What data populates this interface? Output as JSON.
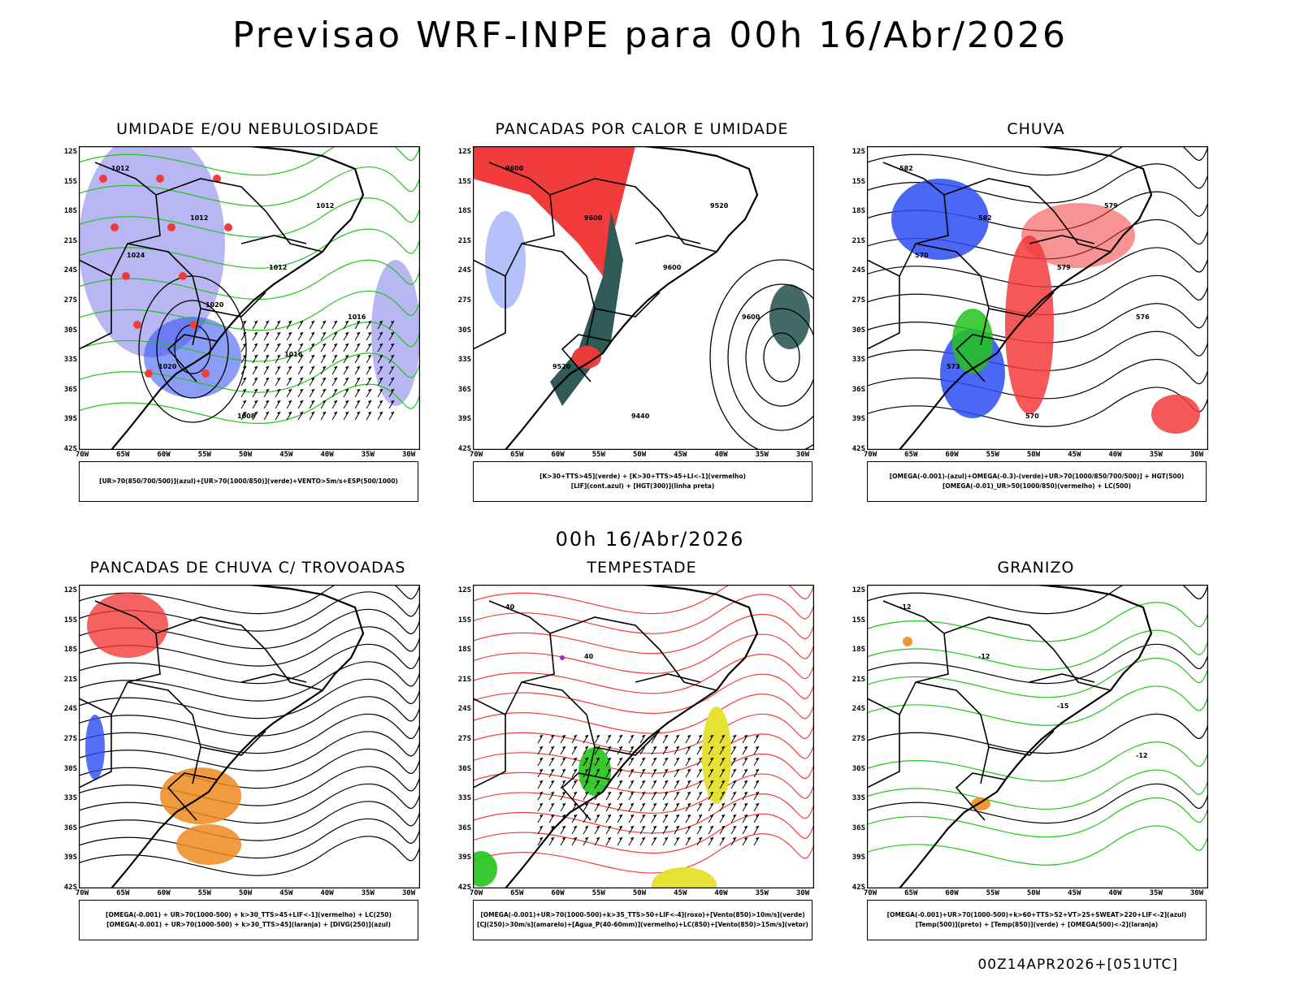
{
  "header": {
    "title": "Previsao WRF-INPE  para 00h 16/Abr/2026"
  },
  "middle": {
    "title": "00h 16/Abr/2026"
  },
  "footer": {
    "stamp": "00Z14APR2026+[051UTC]"
  },
  "axes": {
    "latitudes": [
      "12S",
      "15S",
      "18S",
      "21S",
      "24S",
      "27S",
      "30S",
      "33S",
      "36S",
      "39S",
      "42S"
    ],
    "longitudes": [
      "70W",
      "65W",
      "60W",
      "55W",
      "50W",
      "45W",
      "40W",
      "35W",
      "30W"
    ]
  },
  "panels": [
    {
      "title": "UMIDADE E/OU NEBULOSIDADE",
      "legend": [
        "[UR>70(850/700/500)](azul)+[UR>70(1000/850)](verde)+VENTO>5m/s+ESP(500/1000)"
      ],
      "contour_labels": [
        "1012",
        "1012",
        "1012",
        "1016",
        "1020",
        "1008",
        "1012",
        "1024",
        "1020",
        "1016"
      ]
    },
    {
      "title": "PANCADAS POR CALOR E UMIDADE",
      "legend": [
        "[K>30+TTS>45](verde) + [K>30+TTS>45+LI<-1](vermelho)",
        "[LIF](cont.azul) + [HGT(300)](linha preta)"
      ],
      "contour_labels": [
        "9600",
        "9600",
        "9600",
        "9600",
        "9520",
        "9440",
        "9520"
      ]
    },
    {
      "title": "CHUVA",
      "legend": [
        "[OMEGA(-0.001)-(azul)+OMEGA(-0.3)-(verde)+UR>70(1000/850/700/500)] + HGT(500)",
        "[OMEGA(-0.01)_UR>50(1000/850)(vermelho) + LC(500)"
      ],
      "contour_labels": [
        "582",
        "582",
        "579",
        "576",
        "573",
        "570",
        "579",
        "570"
      ]
    },
    {
      "title": "PANCADAS DE CHUVA C/ TROVOADAS",
      "legend": [
        "[OMEGA(-0.001) + UR>70(1000-500) + k>30_TTS>45+LIF<-1](vermelho) + LC(250)",
        "[OMEGA(-0.001) + UR>70(1000-500) + k>30_TTS>45](laranja) + [DIVG(250)](azul)"
      ],
      "contour_labels": []
    },
    {
      "title": "TEMPESTADE",
      "legend": [
        "[OMEGA(-0.001)+UR>70(1000-500)+k>35_TTS>50+LIF<-4](roxo)+[Vento(850)>10m/s](verde)",
        "[CJ(250)>30m/s](amarelo)+[Agua_P(40-60mm)](vermelho)+LC(850)+[Vento(850)>15m/s](vetor)"
      ],
      "contour_labels": [
        "40",
        "40"
      ]
    },
    {
      "title": "GRANIZO",
      "legend": [
        "[OMEGA(-0.001)+UR>70(1000-500)+k>60+TTS>52+VT>25+SWEAT>220+LIF<-2](azul)",
        "[Temp(500)](preto) + [Temp(850)](verde) + [OMEGA(500)<-2](laranja)"
      ],
      "contour_labels": [
        "-12",
        "-12",
        "-15",
        "-12"
      ]
    }
  ],
  "colors": {
    "blue": "#2b4cf2",
    "green": "#22c41a",
    "red": "#f23b3b",
    "orange": "#ef8a1f",
    "darkgreen": "#2f5a56",
    "yellow": "#e6e02a",
    "lavender": "#a7a5f0",
    "purple": "#9030c0"
  }
}
